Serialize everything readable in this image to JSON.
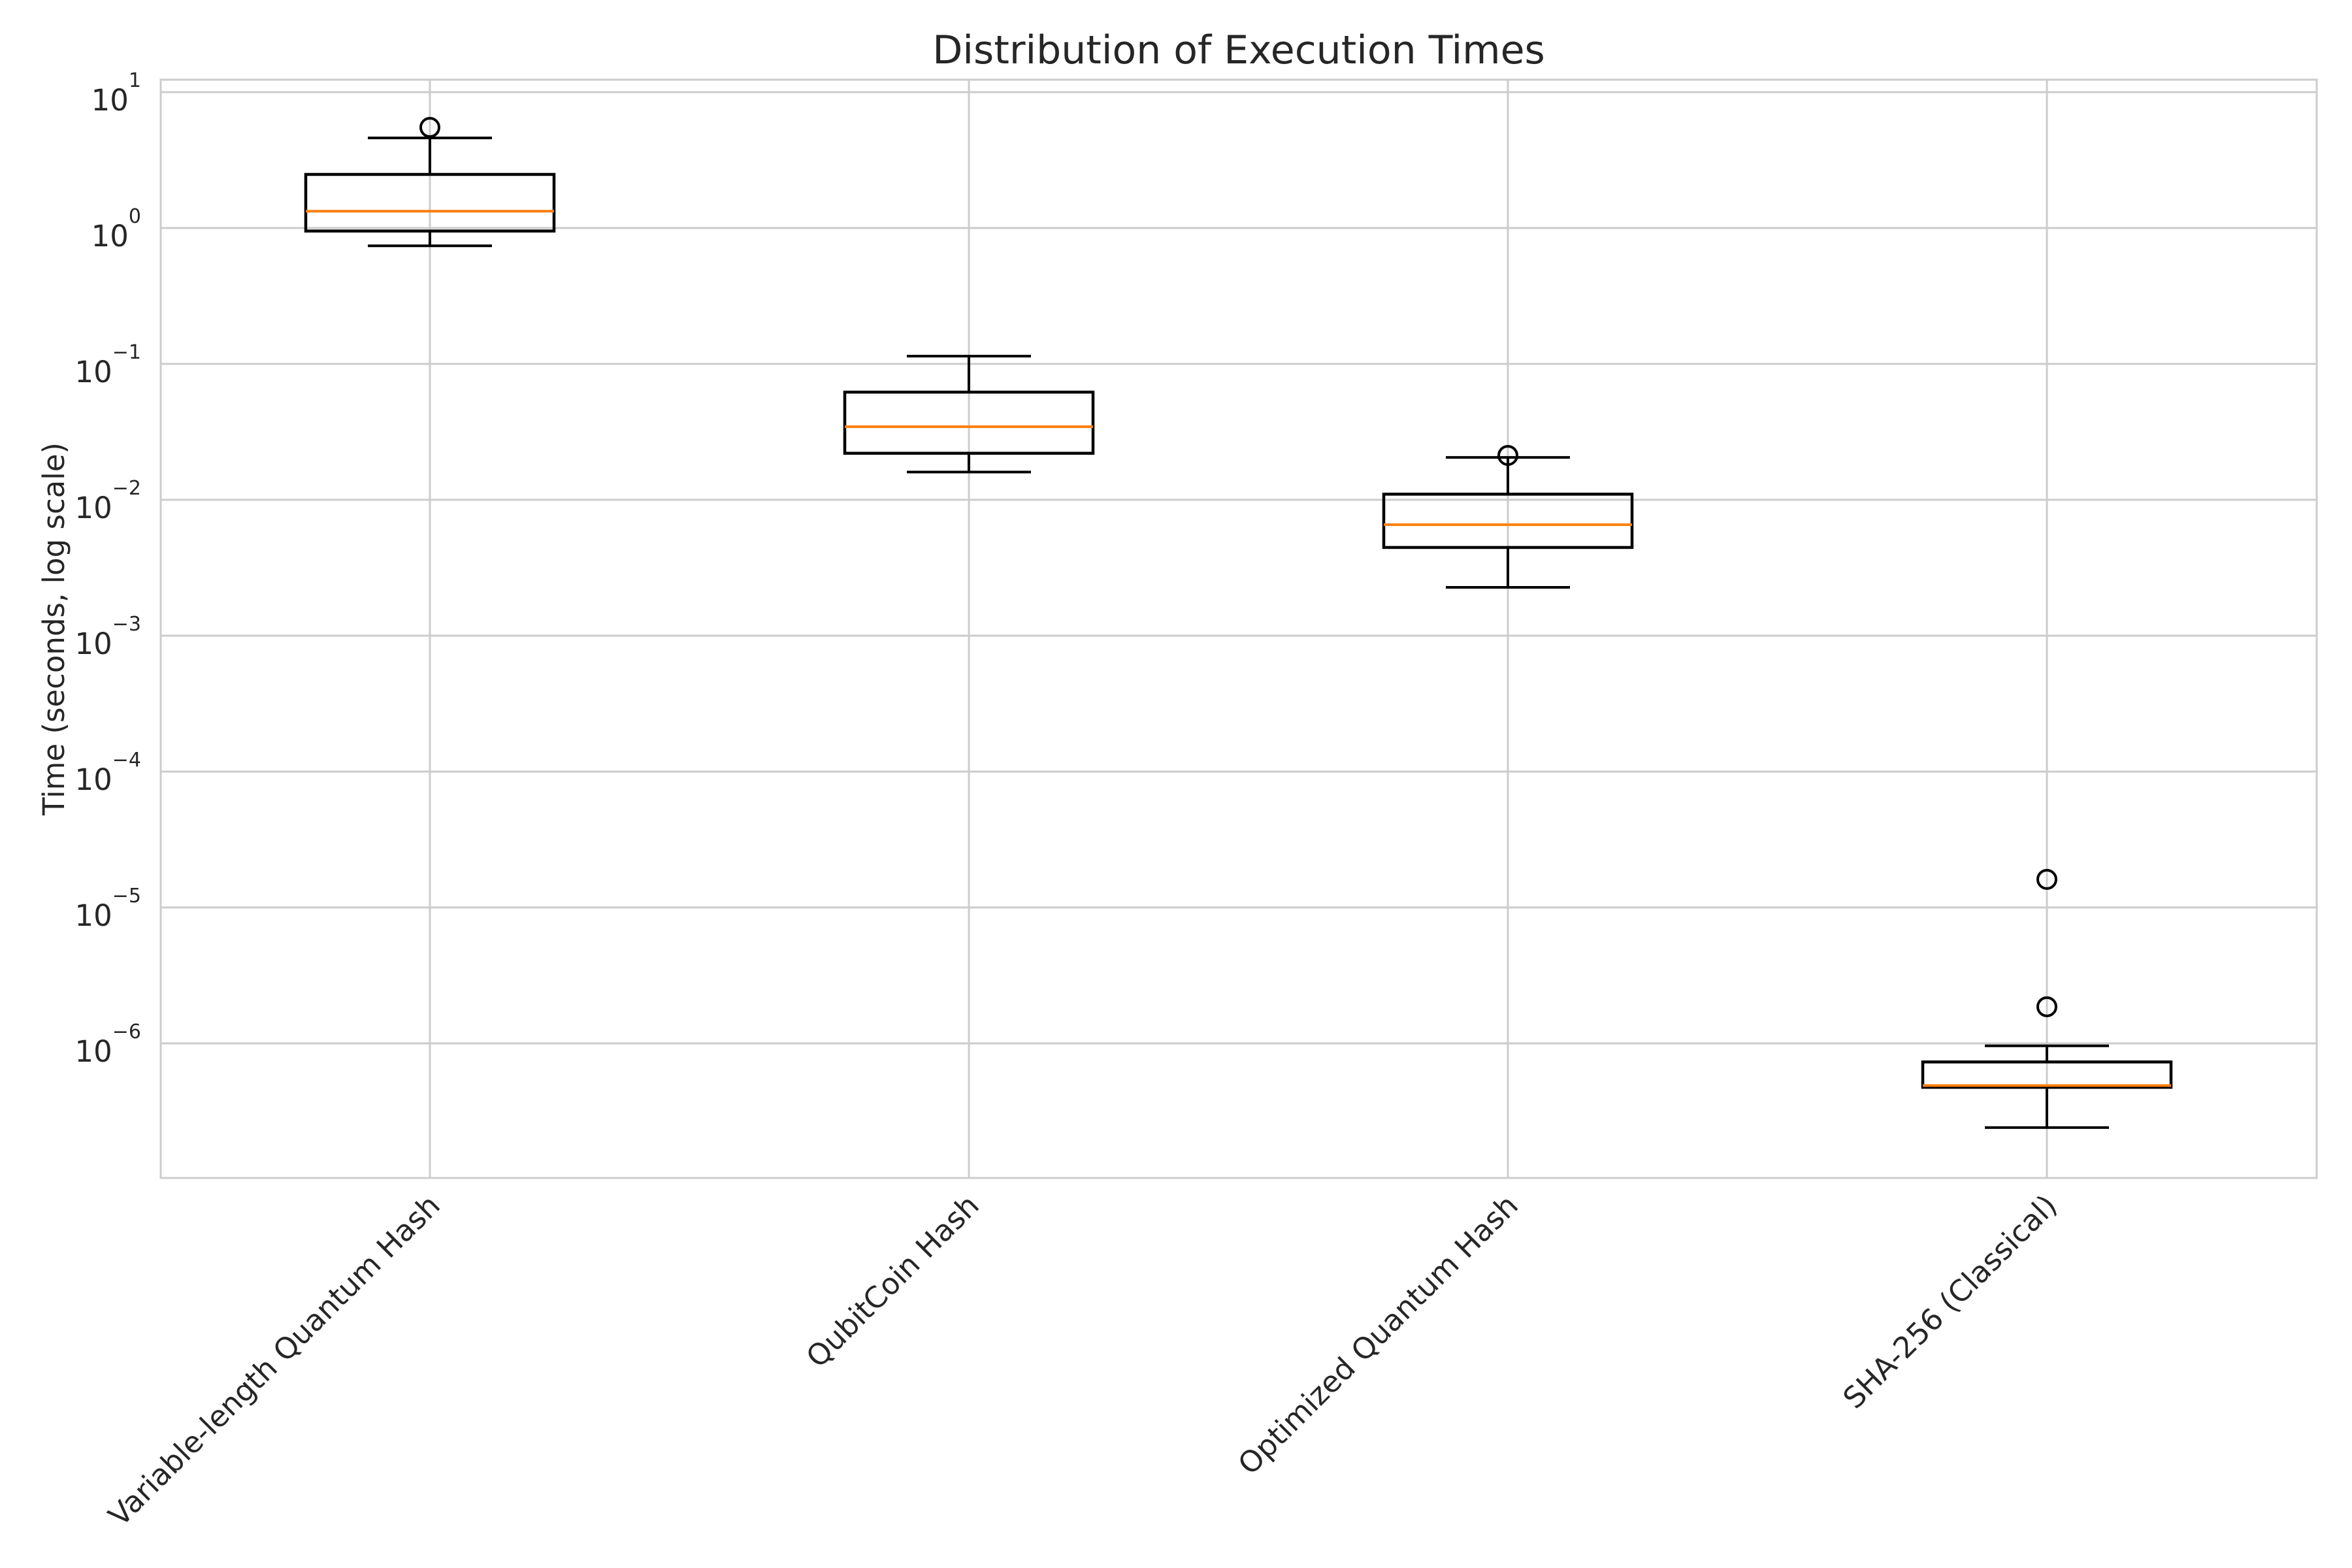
{
  "chart_data": {
    "type": "boxplot",
    "title": "Distribution of Execution Times",
    "xlabel": "",
    "ylabel": "Time (seconds, log scale)",
    "yscale": "log",
    "ylim": [
      1e-07,
      12.3
    ],
    "grid": true,
    "legend_position": "none",
    "ytick_labels": [
      "10^1",
      "10^0",
      "10^-1",
      "10^-2",
      "10^-3",
      "10^-4",
      "10^-5",
      "10^-6"
    ],
    "ytick_exponents": [
      1,
      0,
      -1,
      -2,
      -3,
      -4,
      -5,
      -6
    ],
    "categories": [
      "Variable-length Quantum Hash",
      "QubitCoin Hash",
      "Optimized Quantum Hash",
      "SHA-256 (Classical)"
    ],
    "series": [
      {
        "label": "Variable-length Quantum Hash",
        "whisker_low": 0.74,
        "q1": 0.95,
        "median": 1.33,
        "q3": 2.48,
        "whisker_high": 4.6,
        "outliers": [
          5.5
        ]
      },
      {
        "label": "QubitCoin Hash",
        "whisker_low": 0.016,
        "q1": 0.022,
        "median": 0.0345,
        "q3": 0.062,
        "whisker_high": 0.114,
        "outliers": []
      },
      {
        "label": "Optimized Quantum Hash",
        "whisker_low": 0.00227,
        "q1": 0.00446,
        "median": 0.00656,
        "q3": 0.011,
        "whisker_high": 0.0205,
        "outliers": [
          0.0212
        ]
      },
      {
        "label": "SHA-256 (Classical)",
        "whisker_low": 2.4e-07,
        "q1": 4.75e-07,
        "median": 4.9e-07,
        "q3": 7.3e-07,
        "whisker_high": 9.6e-07,
        "outliers": [
          1.86e-06,
          1.61e-05
        ]
      }
    ],
    "colors": {
      "box_stroke": "#000000",
      "median": "#ff7f0e",
      "grid": "#cccccc",
      "spine": "#cccccc",
      "text": "#262626"
    }
  }
}
